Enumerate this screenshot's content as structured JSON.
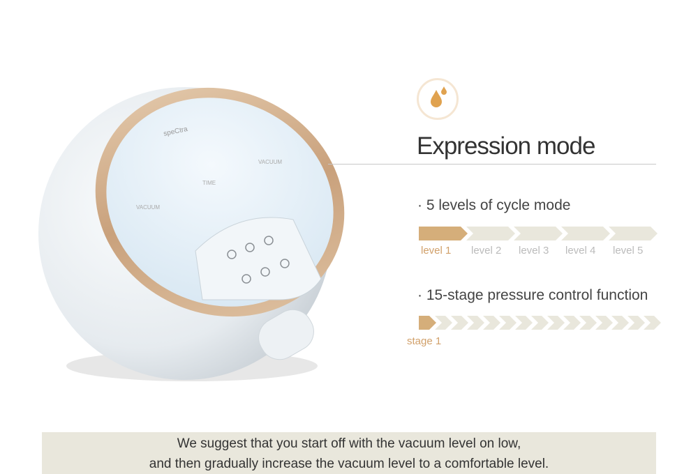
{
  "device": {
    "brand": "speCtra",
    "labels": [
      "VACUUM",
      "TIME",
      "VACUUM"
    ]
  },
  "feature": {
    "icon": "milk-drops-icon",
    "title": "Expression mode",
    "cycle": {
      "heading": "· 5 levels of cycle mode",
      "levels": [
        "level 1",
        "level 2",
        "level 3",
        "level 4",
        "level 5"
      ],
      "active": 1
    },
    "pressure": {
      "heading": "· 15-stage pressure control function",
      "stages": 15,
      "active": 1,
      "active_label": "stage 1"
    }
  },
  "note": {
    "line1": "We suggest that you start off with the vacuum level on low,",
    "line2": "and then gradually increase the vacuum level to a comfortable level."
  },
  "colors": {
    "accent": "#d5ae7a",
    "inactive": "#e9e7dc"
  }
}
